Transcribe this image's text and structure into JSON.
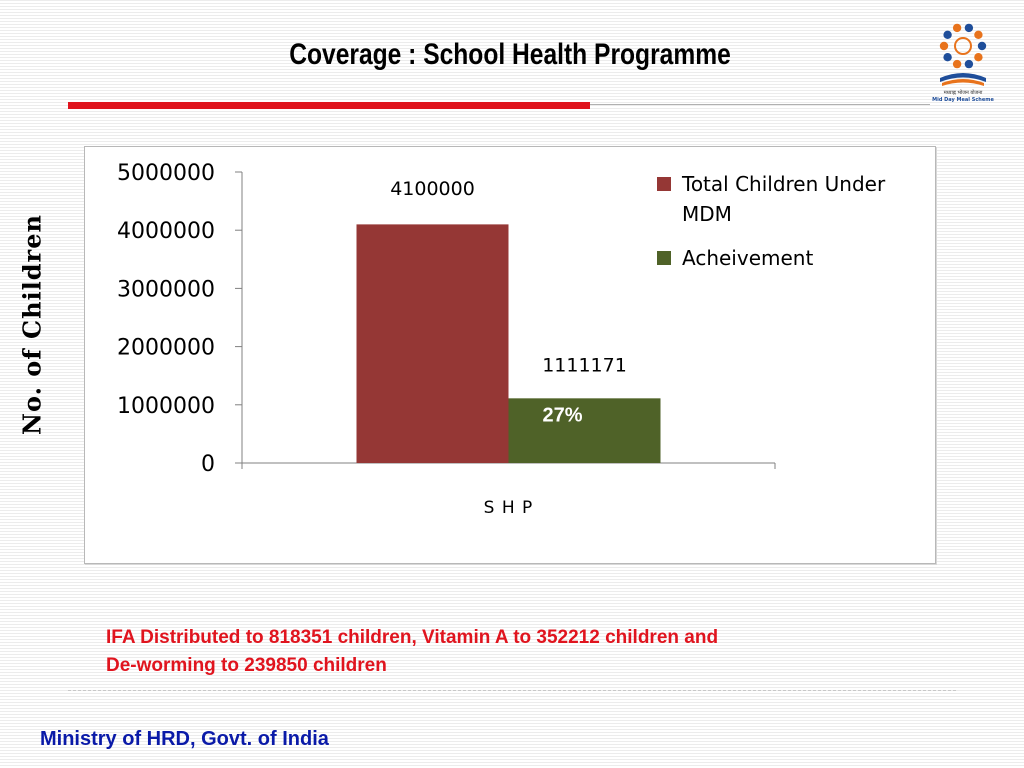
{
  "slide": {
    "title": "Coverage : School Health Programme",
    "y_axis_title": "No. of Children",
    "footnote_line1": "IFA Distributed to 818351 children, Vitamin A to 352212 children and",
    "footnote_line2": "De-worming to 239850 children",
    "footer": "Ministry of HRD, Govt. of India",
    "logo_caption_hindi": "मध्याह्न भोजन योजना",
    "logo_caption": "Mid Day Meal Scheme"
  },
  "colors": {
    "accent_red": "#e0141e",
    "footer_blue": "#0a1aa8",
    "series_total": "#953735",
    "series_achievement": "#4f6228"
  },
  "chart_data": {
    "type": "bar",
    "categories": [
      "S H P"
    ],
    "series": [
      {
        "name": "Total Children Under MDM",
        "values": [
          4100000
        ],
        "color": "#953735",
        "data_label": "4100000"
      },
      {
        "name": "Acheivement",
        "values": [
          1111171
        ],
        "color": "#4f6228",
        "data_label": "1111171",
        "inner_label": "27%"
      }
    ],
    "ylim": [
      0,
      5000000
    ],
    "yticks": [
      0,
      1000000,
      2000000,
      3000000,
      4000000,
      5000000
    ],
    "ytick_labels": [
      "0",
      "1000000",
      "2000000",
      "3000000",
      "4000000",
      "5000000"
    ],
    "ylabel": "No. of Children",
    "legend": "right",
    "grid": false
  }
}
